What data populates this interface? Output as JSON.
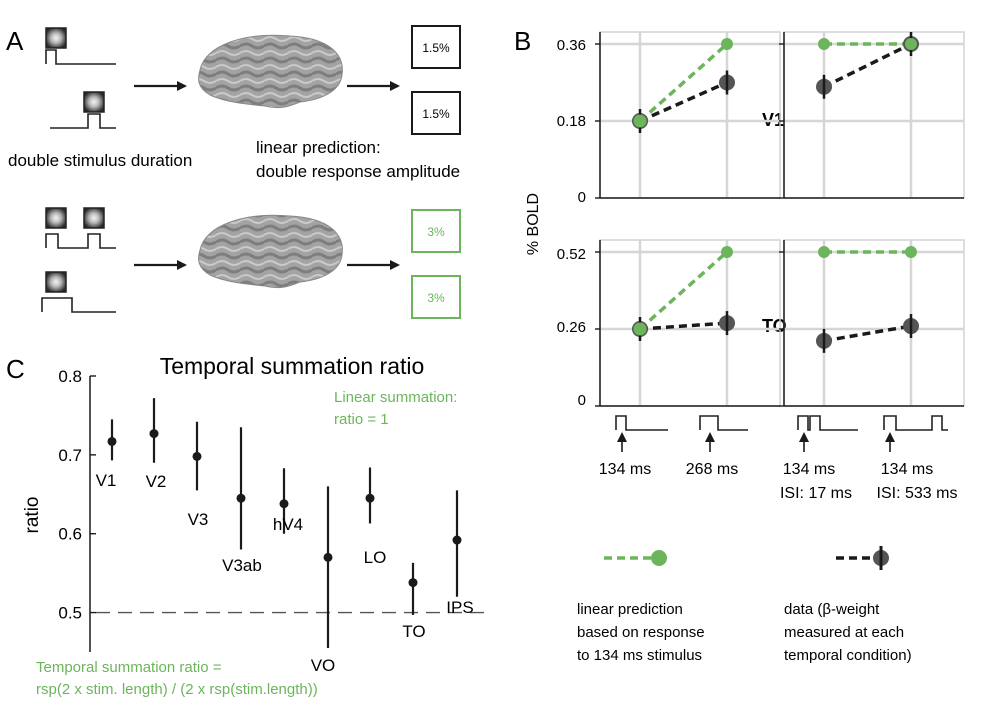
{
  "colors": {
    "green": "#6db55c",
    "black": "#1a1a1a",
    "grid": "#d6d6d6",
    "brain": "#9a9a9a",
    "gray_marker": "#555555"
  },
  "panel_a": {
    "letter": "A",
    "double_duration_label": "double stimulus duration",
    "linear_prediction_line1": "linear prediction:",
    "linear_prediction_line2": "double response amplitude",
    "box1": "1.5%",
    "box2": "1.5%",
    "box3": "3%",
    "box4": "3%"
  },
  "panel_b": {
    "letter": "B",
    "ylabel": "% BOLD",
    "v1_label": "V1",
    "to_label": "TO",
    "v1_ticks": [
      "0.36",
      "0.18",
      "0"
    ],
    "to_ticks": [
      "0.52",
      "0.26",
      "0"
    ],
    "cond_labels": [
      {
        "line1": "134 ms",
        "line2": ""
      },
      {
        "line1": "268 ms",
        "line2": ""
      },
      {
        "line1": "134 ms",
        "line2": "ISI: 17 ms"
      },
      {
        "line1": "134 ms",
        "line2": "ISI: 533 ms"
      }
    ],
    "legend_pred": [
      "linear prediction",
      "based on response",
      "to 134 ms stimulus"
    ],
    "legend_data": [
      "data (β-weight",
      "measured at each",
      "temporal condition)"
    ],
    "v1_duration": {
      "pred": [
        0.18,
        0.36
      ],
      "data": [
        0.18,
        0.27
      ]
    },
    "v1_isi": {
      "pred": [
        0.36,
        0.36
      ],
      "data": [
        0.26,
        0.36
      ]
    },
    "to_duration": {
      "pred": [
        0.26,
        0.52
      ],
      "data": [
        0.26,
        0.28
      ]
    },
    "to_isi": {
      "pred": [
        0.52,
        0.52
      ],
      "data": [
        0.22,
        0.27
      ]
    }
  },
  "panel_c": {
    "letter": "C",
    "linear_note_line1": "Linear summation:",
    "linear_note_line2": "ratio = 1",
    "formula_line1": "Temporal summation ratio  =",
    "formula_line2": "rsp(2 x stim. length) / (2 x rsp(stim.length))"
  },
  "chart_data": {
    "type": "scatter",
    "title": "Temporal summation ratio",
    "xlabel": "",
    "ylabel": "ratio",
    "ylim": [
      0.45,
      0.8
    ],
    "yticks": [
      "0.8",
      "0.7",
      "0.6",
      "0.5"
    ],
    "reference_line": 0.5,
    "series": [
      {
        "name": "V1",
        "value": 0.717,
        "low": 0.693,
        "high": 0.745
      },
      {
        "name": "V2",
        "value": 0.727,
        "low": 0.69,
        "high": 0.772
      },
      {
        "name": "V3",
        "value": 0.698,
        "low": 0.655,
        "high": 0.742
      },
      {
        "name": "V3ab",
        "value": 0.645,
        "low": 0.58,
        "high": 0.735
      },
      {
        "name": "hV4",
        "value": 0.638,
        "low": 0.6,
        "high": 0.683
      },
      {
        "name": "VO",
        "value": 0.57,
        "low": 0.455,
        "high": 0.66
      },
      {
        "name": "LO",
        "value": 0.645,
        "low": 0.613,
        "high": 0.684
      },
      {
        "name": "TO",
        "value": 0.538,
        "low": 0.497,
        "high": 0.563
      },
      {
        "name": "IPS",
        "value": 0.592,
        "low": 0.52,
        "high": 0.655
      }
    ]
  }
}
